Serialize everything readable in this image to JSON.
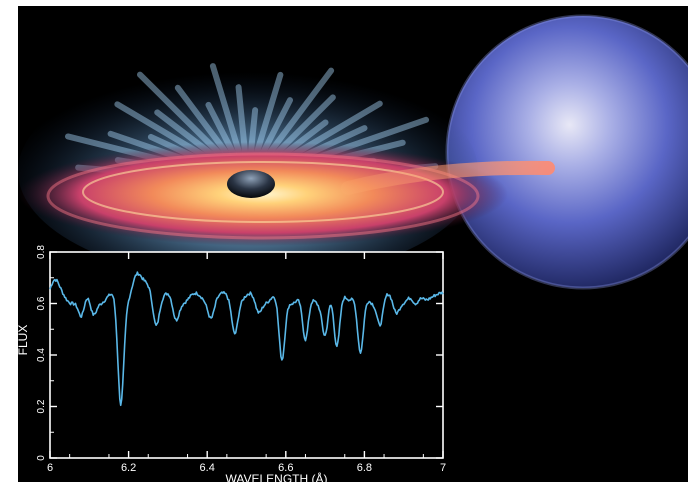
{
  "colors": {
    "background": "#000000",
    "frame": "#ffffff",
    "spectrum": "#5ab8e8",
    "star": "#6f7fd6",
    "disk_hot": "#ffd27a",
    "disk_outer": "#e0486a",
    "outflow": "#8ec9f2"
  },
  "chart_data": {
    "type": "line",
    "title": "",
    "xlabel": "WAVELENGTH (Å)",
    "ylabel": "FLUX",
    "xlim": [
      6,
      7
    ],
    "ylim": [
      0,
      0.8
    ],
    "xticks": [
      "6",
      "6.2",
      "6.4",
      "6.6",
      "6.8",
      "7"
    ],
    "yticks": [
      "0",
      "0.2",
      "0.4",
      "0.6",
      "0.8"
    ],
    "grid": false,
    "baseline": 0.62,
    "absorption_lines": [
      {
        "x": 6.08,
        "depth": 0.08
      },
      {
        "x": 6.11,
        "depth": 0.06
      },
      {
        "x": 6.18,
        "depth": 0.41
      },
      {
        "x": 6.27,
        "depth": 0.1
      },
      {
        "x": 6.32,
        "depth": 0.08
      },
      {
        "x": 6.41,
        "depth": 0.06
      },
      {
        "x": 6.47,
        "depth": 0.12
      },
      {
        "x": 6.53,
        "depth": 0.05
      },
      {
        "x": 6.59,
        "depth": 0.25
      },
      {
        "x": 6.65,
        "depth": 0.18
      },
      {
        "x": 6.7,
        "depth": 0.14
      },
      {
        "x": 6.73,
        "depth": 0.21
      },
      {
        "x": 6.79,
        "depth": 0.23
      },
      {
        "x": 6.84,
        "depth": 0.1
      },
      {
        "x": 6.88,
        "depth": 0.05
      },
      {
        "x": 6.93,
        "depth": 0.04
      }
    ],
    "emission_bumps": [
      {
        "x": 6.01,
        "height": 0.06
      },
      {
        "x": 6.22,
        "height": 0.08
      },
      {
        "x": 6.25,
        "height": 0.05
      },
      {
        "x": 6.745,
        "height": 0.03
      },
      {
        "x": 6.97,
        "height": 0.02
      }
    ]
  }
}
